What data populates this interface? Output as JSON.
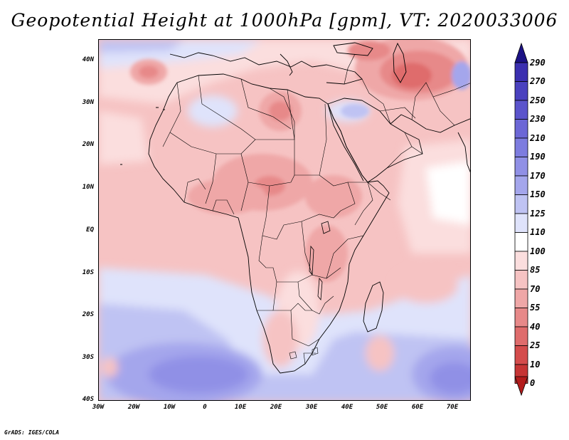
{
  "title": "Geopotential Height at 1000hPa [gpm], VT: 2020033006",
  "footer": "GrADS: IGES/COLA",
  "map": {
    "lat_labels": [
      "40N",
      "30N",
      "20N",
      "10N",
      "EQ",
      "10S",
      "20S",
      "30S",
      "40S"
    ],
    "lon_labels": [
      "30W",
      "20W",
      "10W",
      "0",
      "10E",
      "20E",
      "30E",
      "40E",
      "50E",
      "60E",
      "70E"
    ],
    "lat_range": [
      -40,
      45
    ],
    "lon_range": [
      -30,
      75
    ]
  },
  "colorbar": {
    "labels": [
      "290",
      "270",
      "250",
      "230",
      "210",
      "190",
      "170",
      "150",
      "125",
      "110",
      "100",
      "85",
      "70",
      "55",
      "40",
      "25",
      "10",
      "0"
    ],
    "colors": {
      "top_arrow": "#1c1285",
      "bottom_arrow": "#b31c1c",
      "band_290": "#3b2fb0",
      "band_270": "#4a41bf",
      "band_250": "#5b54cc",
      "band_230": "#6c67d6",
      "band_210": "#7d7cdf",
      "band_190": "#9090e6",
      "band_170": "#a4a6ec",
      "band_150": "#bfc3f3",
      "band_125": "#dfe3fb",
      "band_110": "#ffffff",
      "band_100": "#fbdede",
      "band_85": "#f6c3c3",
      "band_70": "#efa7a7",
      "band_55": "#e78989",
      "band_40": "#df6c6c",
      "band_25": "#d44c4c",
      "band_10": "#c63535",
      "band_0": "#b31c1c"
    }
  }
}
